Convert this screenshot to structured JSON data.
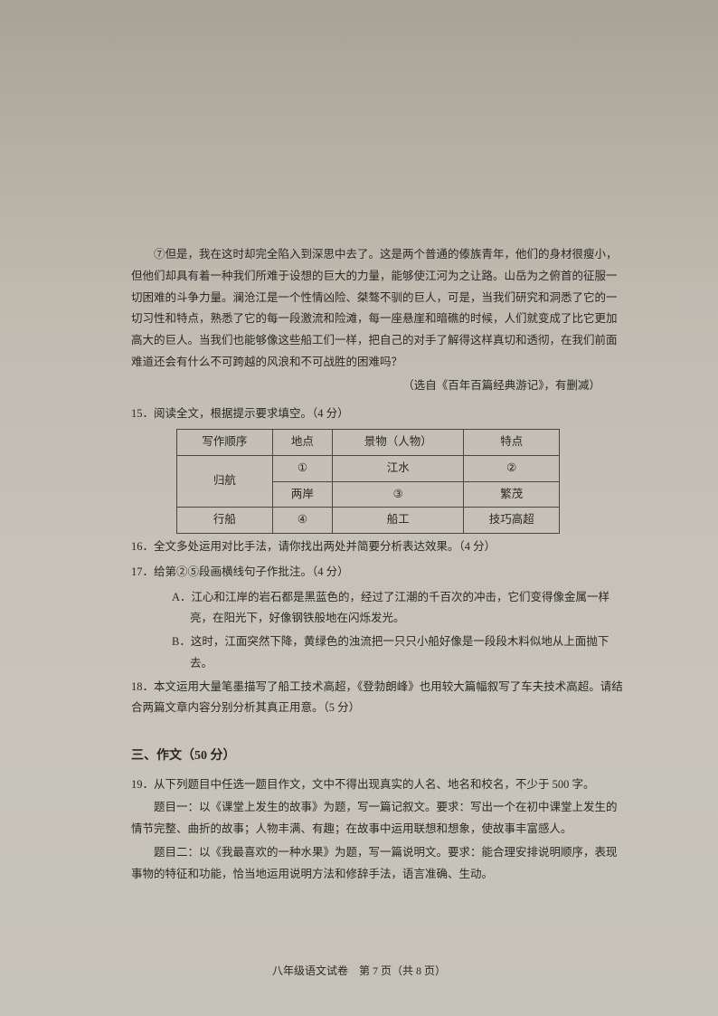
{
  "p7": "⑦但是，我在这时却完全陷入到深思中去了。这是两个普通的傣族青年，他们的身材很瘦小，但他们却具有着一种我们所难于设想的巨大的力量，能够使江河为之让路。山岳为之俯首的征服一切困难的斗争力量。澜沧江是一个性情凶险、桀骜不驯的巨人，可是，当我们研究和洞悉了它的一切习性和特点，熟悉了它的每一段激流和险滩，每一座悬崖和暗礁的时候，人们就变成了比它更加高大的巨人。当我们也能够像这些船工们一样，把自己的对手了解得这样真切和透彻，在我们前面难道还会有什么不可跨越的风浪和不可战胜的困难吗？",
  "source": "（选自《百年百篇经典游记》，有删减）",
  "q15": {
    "prompt": "15．阅读全文，根据提示要求填空。（4 分）",
    "table": {
      "headers": [
        "写作顺序",
        "地点",
        "景物（人物）",
        "特点"
      ],
      "rows": [
        [
          "归航",
          "①",
          "江水",
          "②"
        ],
        [
          "",
          "两岸",
          "③",
          "繁茂"
        ],
        [
          "行船",
          "④",
          "船工",
          "技巧高超"
        ]
      ]
    }
  },
  "q16": "16．全文多处运用对比手法，请你找出两处并简要分析表达效果。（4 分）",
  "q17": {
    "prompt": "17．给第②⑤段画横线句子作批注。（4 分）",
    "A": "A．江心和江岸的岩石都是黑蓝色的，经过了江潮的千百次的冲击，它们变得像金属一样亮，在阳光下，好像钢铁般地在闪烁发光。",
    "B": "B．这时，江面突然下降，黄绿色的浊流把一只只小船好像是一段段木料似地从上面抛下去。"
  },
  "q18": "18．本文运用大量笔墨描写了船工技术高超，《登勃朗峰》也用较大篇幅叙写了车夫技术高超。请结合两篇文章内容分别分析其真正用意。（5 分）",
  "section3": {
    "title": "三、作文（50 分）",
    "q19": "19．从下列题目中任选一题目作文，文中不得出现真实的人名、地名和校名，不少于 500 字。",
    "topic1": "题目一：以《课堂上发生的故事》为题，写一篇记叙文。要求：写出一个在初中课堂上发生的情节完整、曲折的故事；人物丰满、有趣；在故事中运用联想和想象，使故事丰富感人。",
    "topic2": "题目二：以《我最喜欢的一种水果》为题，写一篇说明文。要求：能合理安排说明顺序，表现事物的特征和功能，恰当地运用说明方法和修辞手法，语言准确、生动。"
  },
  "footer": "八年级语文试卷　第 7 页（共 8 页）"
}
